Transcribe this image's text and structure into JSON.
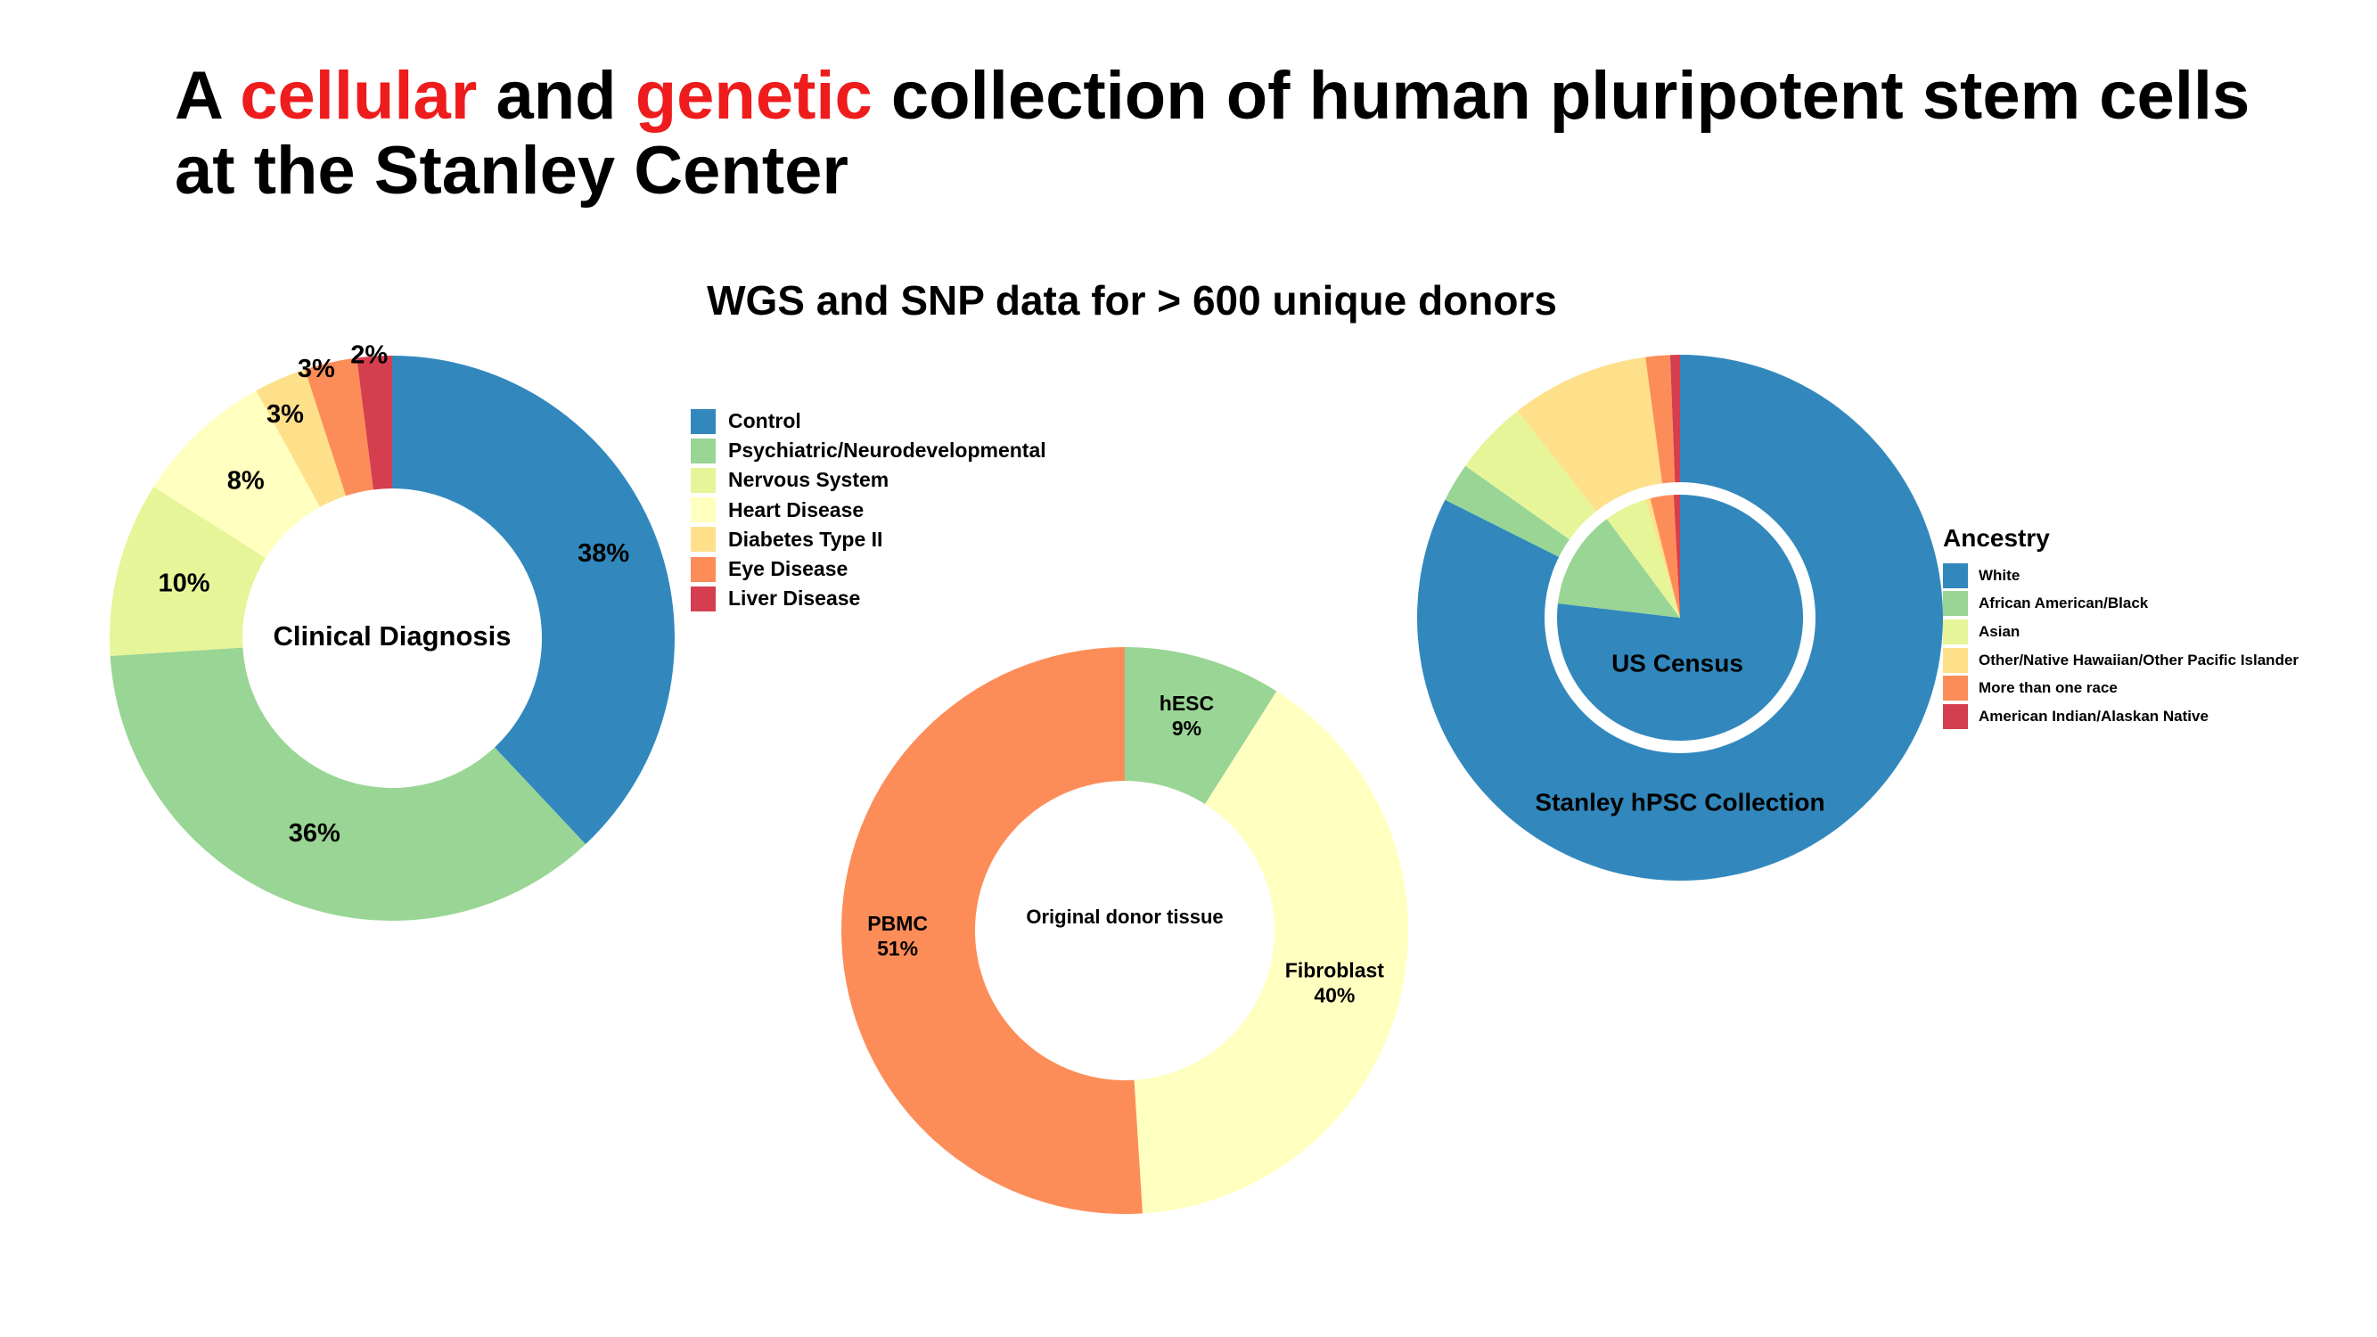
{
  "title": {
    "part1": "A ",
    "red1": "cellular",
    "part2": " and ",
    "red2": "genetic",
    "part3": " collection of human pluripotent stem cells at the Stanley Center"
  },
  "subtitle": "WGS and SNP data for > 600 unique donors",
  "colors": {
    "title_accent": "#ee1c1c",
    "blue": "#3288bd",
    "green": "#99d594",
    "light_green": "#e6f598",
    "pale_yellow": "#ffffbf",
    "light_orange": "#fee08b",
    "orange": "#fc8d59",
    "red": "#d53e4f"
  },
  "chart_data": [
    {
      "id": "clinical-diagnosis",
      "type": "donut",
      "center_label": "Clinical Diagnosis",
      "legend_position": "right",
      "categories": [
        "Control",
        "Psychiatric/Neurodevelopmental",
        "Nervous System",
        "Heart Disease",
        "Diabetes Type II",
        "Eye Disease",
        "Liver Disease"
      ],
      "values": [
        38,
        36,
        10,
        8,
        3,
        3,
        2
      ],
      "labels": [
        "38%",
        "36%",
        "10%",
        "8%",
        "3%",
        "3%",
        "2%"
      ],
      "colors": [
        "#3288bd",
        "#99d594",
        "#e6f598",
        "#ffffbf",
        "#fee08b",
        "#fc8d59",
        "#d53e4f"
      ]
    },
    {
      "id": "original-donor-tissue",
      "type": "donut",
      "center_label": "Original donor tissue",
      "categories": [
        "hESC",
        "Fibroblast",
        "PBMC"
      ],
      "values": [
        9,
        40,
        51
      ],
      "labels": [
        "9%",
        "40%",
        "51%"
      ],
      "colors": [
        "#99d594",
        "#ffffbf",
        "#fc8d59"
      ]
    },
    {
      "id": "ancestry",
      "type": "pie",
      "legend_title": "Ancestry",
      "legend_position": "right",
      "categories": [
        "White",
        "African American/Black",
        "Asian",
        "Other/Native Hawaiian/Other Pacific Islander",
        "More than one race",
        "American Indian/Alaskan Native"
      ],
      "colors": [
        "#3288bd",
        "#99d594",
        "#e6f598",
        "#fee08b",
        "#fc8d59",
        "#d53e4f"
      ],
      "series": [
        {
          "name": "Stanley hPSC Collection",
          "values": [
            82.4,
            2.4,
            4.6,
            8.5,
            1.5,
            0.6
          ]
        },
        {
          "name": "US Census",
          "values": [
            75,
            12.7,
            5.5,
            0.6,
            3.0,
            0.8
          ]
        }
      ]
    }
  ]
}
